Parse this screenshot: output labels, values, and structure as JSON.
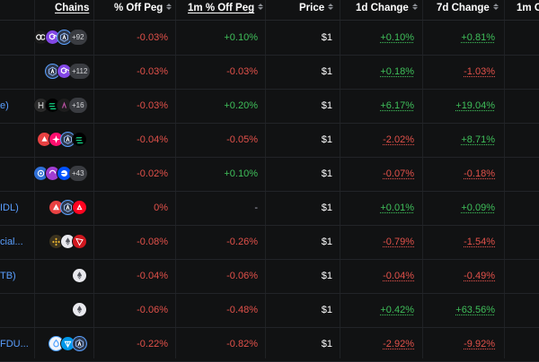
{
  "headers": {
    "chains": "Chains",
    "off_peg": "% Off Peg",
    "off_peg_1m": "1m % Off Peg",
    "price": "Price",
    "change_1d": "1d Change",
    "change_7d": "7d Change",
    "change_1m": "1m C"
  },
  "rows": [
    {
      "name": "",
      "chains": [
        "multi-chain-icon",
        "polygon-icon",
        "arbitrum-icon"
      ],
      "more": "+92",
      "off_peg": "-0.03%",
      "off_peg_1m": "+0.10%",
      "price": "$1",
      "change_1d": "+0.10%",
      "change_7d": "+0.81%"
    },
    {
      "name": "",
      "chains": [
        "arbitrum-icon",
        "polygon-icon"
      ],
      "more": "+112",
      "off_peg": "-0.03%",
      "off_peg_1m": "-0.03%",
      "price": "$1",
      "change_1d": "+0.18%",
      "change_7d": "-1.03%"
    },
    {
      "name": "e)",
      "chains": [
        "hedera-icon",
        "solana-icon",
        "aave-icon"
      ],
      "more": "+16",
      "off_peg": "-0.03%",
      "off_peg_1m": "+0.20%",
      "price": "$1",
      "change_1d": "+6.17%",
      "change_7d": "+19.04%"
    },
    {
      "name": "",
      "chains": [
        "red-chain-icon",
        "pink-chain-icon",
        "arbitrum-icon",
        "solana-icon"
      ],
      "more": "",
      "off_peg": "-0.04%",
      "off_peg_1m": "-0.05%",
      "price": "$1",
      "change_1d": "-2.02%",
      "change_7d": "+8.71%"
    },
    {
      "name": "",
      "chains": [
        "blue-chain-icon",
        "purple-chain-icon",
        "base-icon"
      ],
      "more": "+43",
      "off_peg": "-0.02%",
      "off_peg_1m": "+0.10%",
      "price": "$1",
      "change_1d": "-0.07%",
      "change_7d": "-0.18%"
    },
    {
      "name": "IDL)",
      "chains": [
        "avalanche-icon",
        "arbitrum-icon",
        "optimism-icon"
      ],
      "more": "",
      "off_peg": "0%",
      "off_peg_1m": "-",
      "price": "$1",
      "change_1d": "+0.01%",
      "change_7d": "+0.09%"
    },
    {
      "name": "cial...",
      "chains": [
        "bnb-icon",
        "ethereum-icon",
        "tron-icon"
      ],
      "more": "",
      "off_peg": "-0.08%",
      "off_peg_1m": "-0.26%",
      "price": "$1",
      "change_1d": "-0.79%",
      "change_7d": "-1.54%"
    },
    {
      "name": "TB)",
      "chains": [
        "ethereum-icon"
      ],
      "more": "",
      "off_peg": "-0.04%",
      "off_peg_1m": "-0.06%",
      "price": "$1",
      "change_1d": "-0.04%",
      "change_7d": "-0.49%"
    },
    {
      "name": "",
      "chains": [
        "ethereum-icon"
      ],
      "more": "",
      "off_peg": "-0.06%",
      "off_peg_1m": "-0.48%",
      "price": "$1",
      "change_1d": "+0.42%",
      "change_7d": "+63.56%"
    },
    {
      "name": "FDU...",
      "chains": [
        "sui-icon",
        "ton-icon",
        "arbitrum-icon"
      ],
      "more": "",
      "off_peg": "-0.22%",
      "off_peg_1m": "-0.82%",
      "price": "$1",
      "change_1d": "-2.92%",
      "change_7d": "-9.92%"
    }
  ]
}
